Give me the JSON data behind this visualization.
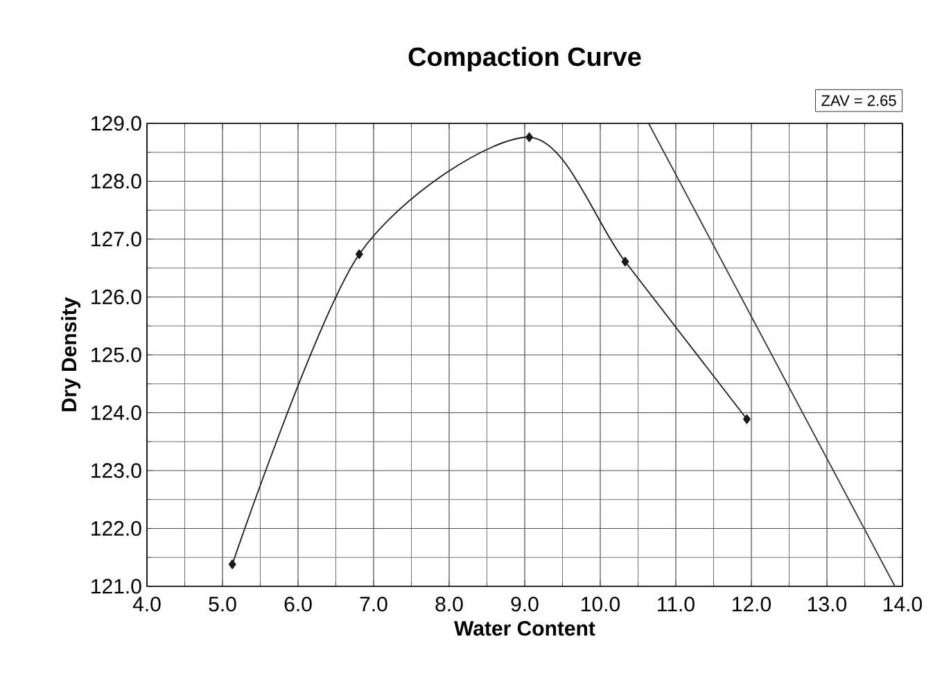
{
  "chart_data": {
    "type": "line",
    "title": "Compaction Curve",
    "xlabel": "Water Content",
    "ylabel": "Dry Density",
    "annotations": [
      "ZAV = 2.65"
    ],
    "series": [
      {
        "color": "#1a1a1a",
        "x": [
          5.13,
          6.81,
          9.06,
          10.33,
          11.94
        ],
        "values": [
          121.38,
          126.74,
          128.76,
          126.61,
          123.89
        ],
        "marker": "diamond"
      },
      {
        "color": "#333333",
        "x": [
          10.64,
          13.9
        ],
        "values": [
          129.0,
          121.0
        ],
        "marker": "none"
      }
    ],
    "xlim": [
      4,
      14
    ],
    "ylim": [
      121,
      129
    ],
    "xticks": [
      {
        "value": 4,
        "label": "4.0"
      },
      {
        "value": 5,
        "label": "5.0"
      },
      {
        "value": 6,
        "label": "6.0"
      },
      {
        "value": 7,
        "label": "7.0"
      },
      {
        "value": 8,
        "label": "8.0"
      },
      {
        "value": 9,
        "label": "9.0"
      },
      {
        "value": 10,
        "label": "10.0"
      },
      {
        "value": 11,
        "label": "11.0"
      },
      {
        "value": 12,
        "label": "12.0"
      },
      {
        "value": 13,
        "label": "13.0"
      },
      {
        "value": 14,
        "label": "14.0"
      }
    ],
    "yticks": [
      {
        "value": 121,
        "label": "121.0"
      },
      {
        "value": 122,
        "label": "122.0"
      },
      {
        "value": 123,
        "label": "123.0"
      },
      {
        "value": 124,
        "label": "124.0"
      },
      {
        "value": 125,
        "label": "125.0"
      },
      {
        "value": 126,
        "label": "126.0"
      },
      {
        "value": 127,
        "label": "127.0"
      },
      {
        "value": 128,
        "label": "128.0"
      },
      {
        "value": 129,
        "label": "129.0"
      }
    ],
    "grid": true,
    "line_style": "solid"
  }
}
